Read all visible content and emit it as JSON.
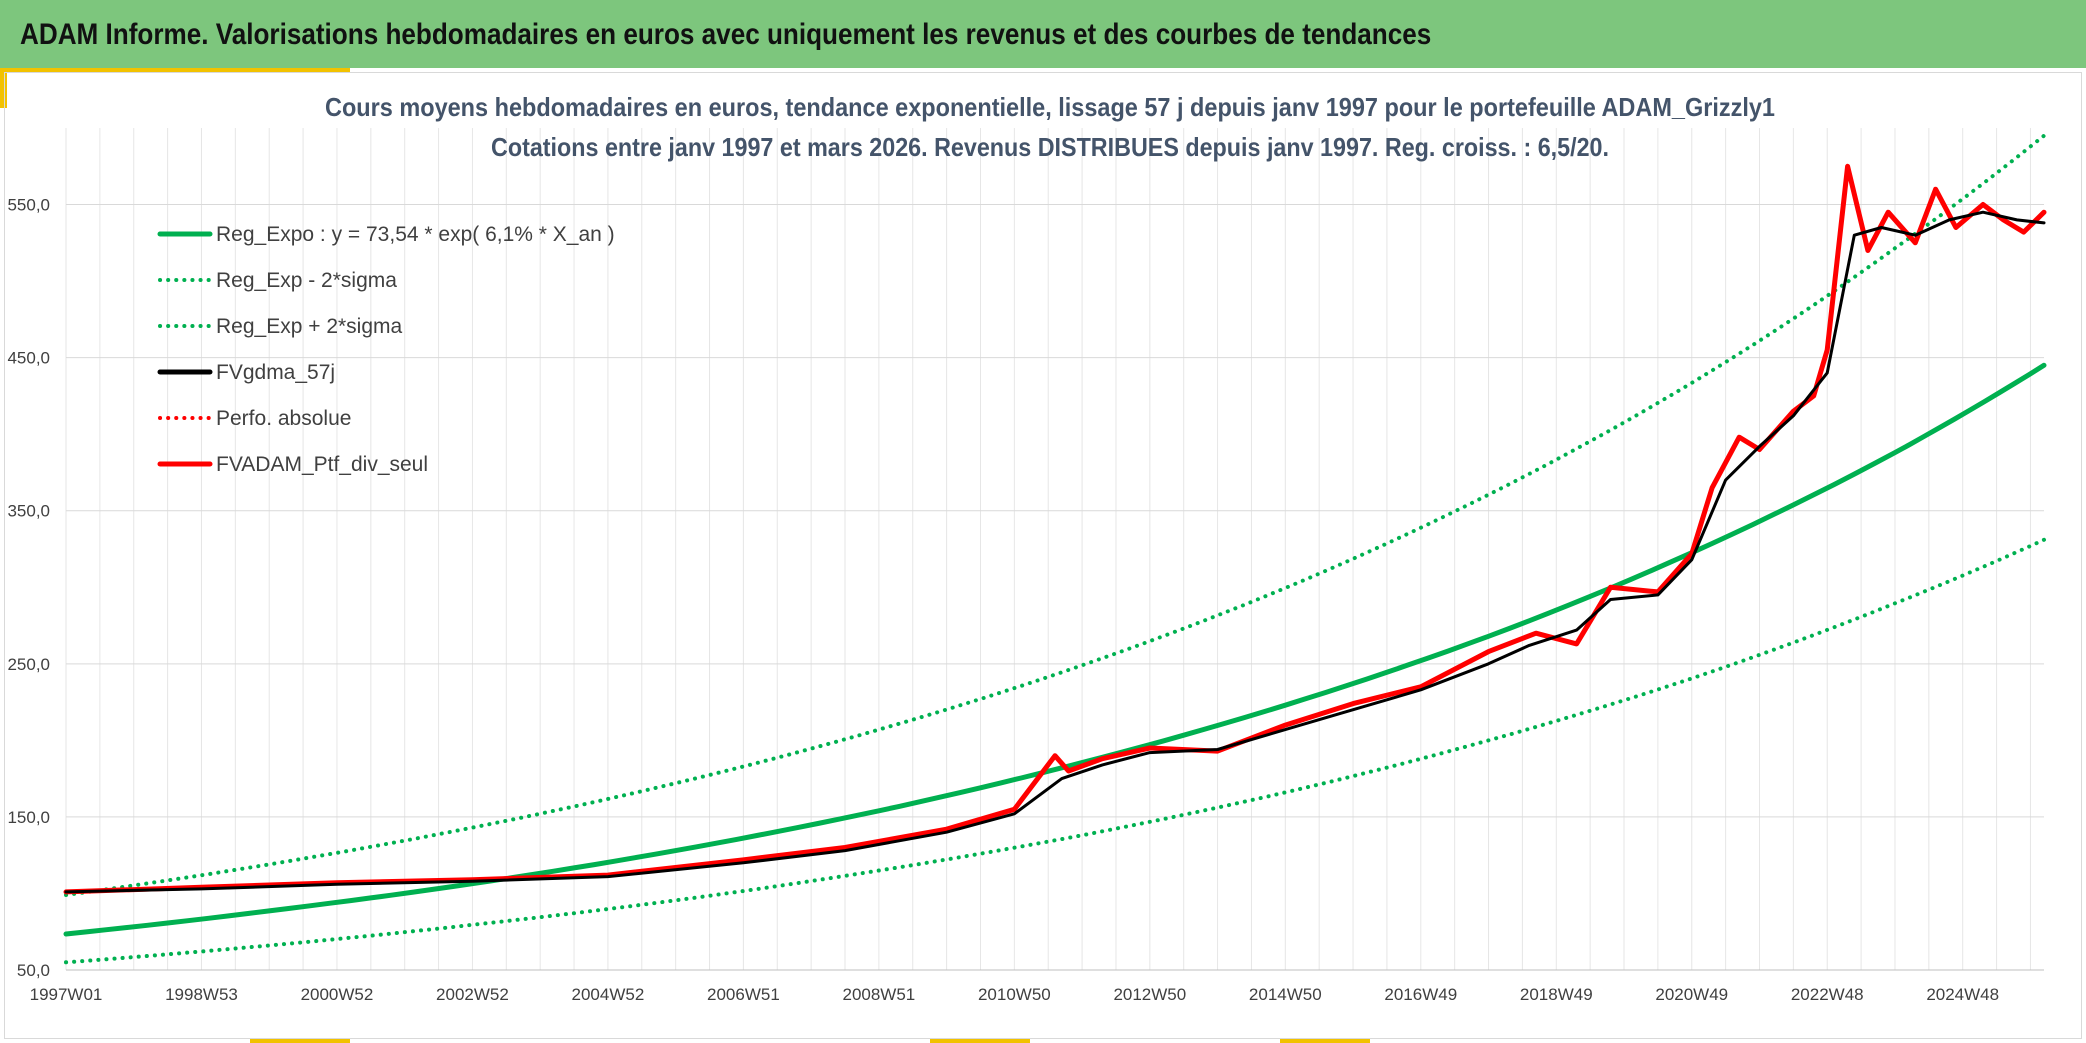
{
  "header": {
    "title": "ADAM Informe. Valorisations hebdomadaires en euros avec uniquement les revenus et des courbes de tendances"
  },
  "colors": {
    "header_bg": "#7dc67d",
    "accent": "#f2c200",
    "trend": "#00b050",
    "smoothed": "#000000",
    "portfolio": "#ff0000"
  },
  "chart_data": {
    "type": "line",
    "title": "Cours moyens hebdomadaires en euros, tendance exponentielle, lissage 57 j depuis janv 1997 pour le portefeuille ADAM_Grizzly1",
    "subtitle": "Cotations entre janv 1997 et mars 2026. Revenus DISTRIBUES depuis janv 1997. Reg. croiss. : 6,5/20.",
    "xlabel": "",
    "ylabel": "",
    "x_range": [
      1997.0,
      2026.2
    ],
    "ylim": [
      50,
      600
    ],
    "y_ticks": [
      50,
      150,
      250,
      350,
      450,
      550
    ],
    "y_tick_labels": [
      "50,0",
      "150,0",
      "250,0",
      "350,0",
      "450,0",
      "550,0"
    ],
    "x_ticks": [
      1997.0,
      1999.0,
      2001.0,
      2003.0,
      2005.0,
      2007.0,
      2009.0,
      2011.0,
      2013.0,
      2015.0,
      2017.0,
      2019.0,
      2021.0,
      2023.0,
      2025.0
    ],
    "x_tick_labels": [
      "1997W01",
      "1998W53",
      "2000W52",
      "2002W52",
      "2004W52",
      "2006W51",
      "2008W51",
      "2010W50",
      "2012W50",
      "2014W50",
      "2016W49",
      "2018W49",
      "2020W49",
      "2022W48",
      "2024W48"
    ],
    "grid": true,
    "legend_position": "top-left",
    "legend": [
      "Reg_Expo : y = 73,54 * exp( 6,1% *  X_an )",
      "Reg_Exp - 2*sigma",
      "Reg_Exp + 2*sigma",
      "FVgdma_57j",
      "Perfo. absolue",
      "FVADAM_Ptf_div_seul"
    ],
    "series": [
      {
        "name": "Reg_Expo : y = 73,54 * exp( 6,1% *  X_an )",
        "style": "solid",
        "color": "#00b050",
        "x": [
          1997.0,
          2000.0,
          2003.0,
          2006.0,
          2009.0,
          2012.0,
          2015.0,
          2018.0,
          2021.0,
          2024.0,
          2026.2
        ],
        "values": [
          73.5,
          88.6,
          106.4,
          128.0,
          154.0,
          185.5,
          223.0,
          268.0,
          322.6,
          388.0,
          445.0
        ]
      },
      {
        "name": "Reg_Exp - 2*sigma",
        "style": "dotted",
        "color": "#00b050",
        "x": [
          1997.0,
          2000.0,
          2003.0,
          2006.0,
          2009.0,
          2012.0,
          2015.0,
          2018.0,
          2021.0,
          2024.0,
          2026.2
        ],
        "values": [
          55.0,
          66.0,
          79.5,
          95.5,
          115.0,
          138.0,
          166.0,
          200.0,
          240.5,
          289.5,
          331.0
        ]
      },
      {
        "name": "Reg_Exp + 2*sigma",
        "style": "dotted",
        "color": "#00b050",
        "x": [
          1997.0,
          2000.0,
          2003.0,
          2006.0,
          2009.0,
          2012.0,
          2015.0,
          2018.0,
          2021.0,
          2024.0,
          2026.2
        ],
        "values": [
          99.0,
          119.0,
          143.0,
          172.0,
          207.0,
          249.0,
          299.5,
          360.5,
          433.5,
          521.5,
          595.0
        ]
      },
      {
        "name": "FVgdma_57j",
        "style": "solid",
        "color": "#000000",
        "x": [
          1997.0,
          1999.0,
          2001.0,
          2003.0,
          2005.0,
          2007.0,
          2008.5,
          2010.0,
          2011.0,
          2011.7,
          2012.3,
          2013.0,
          2014.0,
          2015.0,
          2016.0,
          2017.0,
          2018.0,
          2018.6,
          2019.3,
          2019.8,
          2020.5,
          2021.0,
          2021.5,
          2022.0,
          2022.5,
          2023.0,
          2023.4,
          2023.8,
          2024.3,
          2024.8,
          2025.3,
          2025.8,
          2026.2
        ],
        "values": [
          101,
          103,
          106,
          108,
          111,
          120,
          128,
          140,
          152,
          175,
          184,
          192,
          194,
          207,
          220,
          233,
          250,
          262,
          272,
          292,
          295,
          318,
          370,
          392,
          412,
          440,
          530,
          535,
          530,
          540,
          545,
          540,
          538
        ]
      },
      {
        "name": "Perfo. absolue",
        "style": "dotted",
        "color": "#ff0000",
        "x": [],
        "values": []
      },
      {
        "name": "FVADAM_Ptf_div_seul",
        "style": "solid",
        "color": "#ff0000",
        "x": [
          1997.0,
          1999.0,
          2001.0,
          2003.0,
          2005.0,
          2007.0,
          2008.5,
          2010.0,
          2011.0,
          2011.6,
          2011.8,
          2012.3,
          2013.0,
          2014.0,
          2015.0,
          2016.0,
          2017.0,
          2018.0,
          2018.7,
          2019.3,
          2019.8,
          2020.5,
          2021.0,
          2021.3,
          2021.7,
          2022.0,
          2022.5,
          2022.8,
          2023.0,
          2023.3,
          2023.6,
          2023.9,
          2024.3,
          2024.6,
          2024.9,
          2025.3,
          2025.6,
          2025.9,
          2026.2
        ],
        "values": [
          101,
          104,
          107,
          109,
          112,
          122,
          130,
          142,
          155,
          190,
          180,
          188,
          195,
          193,
          210,
          224,
          235,
          258,
          270,
          263,
          300,
          297,
          322,
          365,
          398,
          390,
          415,
          425,
          455,
          575,
          520,
          545,
          525,
          560,
          535,
          550,
          540,
          532,
          545
        ]
      }
    ]
  }
}
